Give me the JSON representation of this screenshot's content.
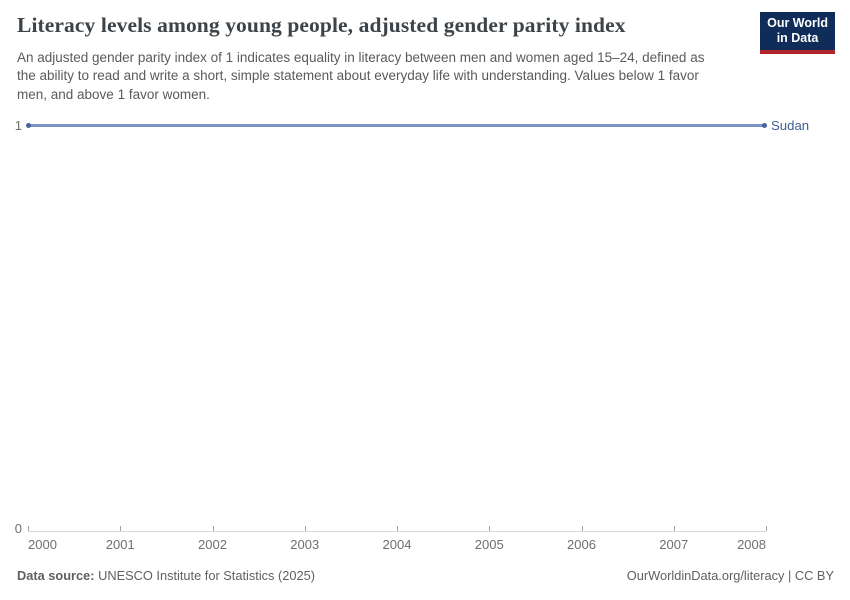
{
  "header": {
    "title": "Literacy levels among young people, adjusted gender parity index",
    "subtitle": "An adjusted gender parity index of 1 indicates equality in literacy between men and women aged 15–24, defined as the ability to read and write a short, simple statement about everyday life with understanding. Values below 1 favor men, and above 1 favor women.",
    "logo": {
      "line1": "Our World",
      "line2": "in Data",
      "bg_color": "#102d5a",
      "accent_color": "#b2252f"
    }
  },
  "chart": {
    "series_label": "Sudan",
    "line_color": "#7b93c2",
    "point_color": "#47639e",
    "series_label_color": "#3d5e94",
    "y_axis": {
      "top_label": "1",
      "bottom_label": "0"
    },
    "x_axis": {
      "ticks": [
        "2000",
        "2001",
        "2002",
        "2003",
        "2004",
        "2005",
        "2006",
        "2007",
        "2008"
      ]
    }
  },
  "chart_data": {
    "type": "line",
    "title": "Literacy levels among young people, adjusted gender parity index",
    "x": [
      2000,
      2001,
      2002,
      2003,
      2004,
      2005,
      2006,
      2007,
      2008
    ],
    "series": [
      {
        "name": "Sudan",
        "values": [
          1,
          1,
          1,
          1,
          1,
          1,
          1,
          1,
          1
        ]
      }
    ],
    "xlabel": "",
    "ylabel": "",
    "ylim": [
      0,
      1
    ],
    "y_ticks": [
      0,
      1
    ],
    "grid": false,
    "legend_position": "right-of-line-end"
  },
  "footer": {
    "source_label": "Data source:",
    "source_value": "UNESCO Institute for Statistics (2025)",
    "credit": "OurWorldinData.org/literacy | CC BY"
  }
}
